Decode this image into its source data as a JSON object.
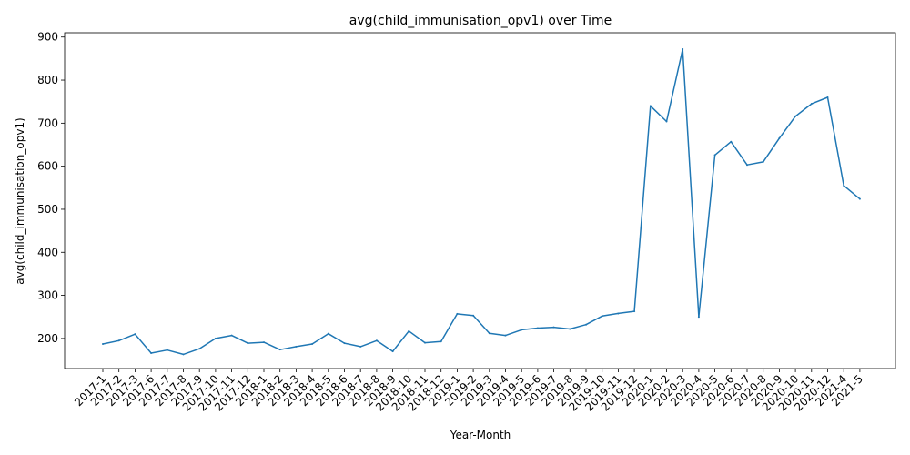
{
  "chart_data": {
    "type": "line",
    "title": "avg(child_immunisation_opv1) over Time",
    "xlabel": "Year-Month",
    "ylabel": "avg(child_immunisation_opv1)",
    "ylim": [
      130,
      910
    ],
    "yticks": [
      200,
      300,
      400,
      500,
      600,
      700,
      800,
      900
    ],
    "grid": false,
    "line_color": "#1f77b4",
    "categories": [
      "2017-1",
      "2017-2",
      "2017-3",
      "2017-6",
      "2017-7",
      "2017-8",
      "2017-9",
      "2017-10",
      "2017-11",
      "2017-12",
      "2018-1",
      "2018-2",
      "2018-3",
      "2018-4",
      "2018-5",
      "2018-6",
      "2018-7",
      "2018-8",
      "2018-9",
      "2018-10",
      "2018-11",
      "2018-12",
      "2019-1",
      "2019-2",
      "2019-3",
      "2019-4",
      "2019-5",
      "2019-6",
      "2019-7",
      "2019-8",
      "2019-9",
      "2019-10",
      "2019-11",
      "2019-12",
      "2020-1",
      "2020-2",
      "2020-3",
      "2020-4",
      "2020-5",
      "2020-6",
      "2020-7",
      "2020-8",
      "2020-9",
      "2020-10",
      "2020-11",
      "2020-12",
      "2021-4",
      "2021-5"
    ],
    "series": [
      {
        "values": [
          187,
          195,
          210,
          166,
          173,
          163,
          176,
          200,
          207,
          189,
          191,
          174,
          181,
          187,
          211,
          189,
          181,
          195,
          170,
          217,
          190,
          193,
          257,
          253,
          212,
          207,
          220,
          224,
          226,
          222,
          232,
          252,
          258,
          263,
          740,
          704,
          872,
          250,
          626,
          657,
          603,
          610,
          665,
          716,
          745,
          760,
          555,
          524
        ]
      }
    ]
  }
}
